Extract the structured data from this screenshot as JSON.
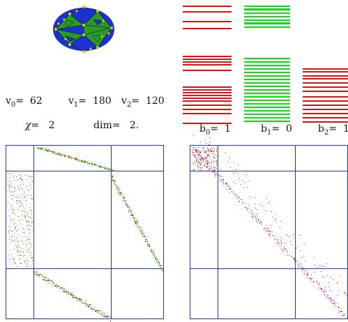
{
  "stats": {
    "v0_label": "v",
    "v0_sub": "0",
    "v0_eq": "=",
    "v0_value": "62",
    "v1_label": "v",
    "v1_sub": "1",
    "v1_eq": "=",
    "v1_value": "180",
    "v2_label": "v",
    "v2_sub": "2",
    "v2_eq": "=",
    "v2_value": "120",
    "chi_label": "χ=",
    "chi_value": "2",
    "dim_label": "dim=",
    "dim_value": "2."
  },
  "betti": {
    "b0_label": "b",
    "b0_sub": "0",
    "b0_eq": "=",
    "b0_value": "1",
    "b1_label": "b",
    "b1_sub": "1",
    "b1_eq": "=",
    "b1_value": "0",
    "b2_label": "b",
    "b2_sub": "2",
    "b2_eq": "=",
    "b2_value": "1"
  },
  "colors": {
    "red": "#e01010",
    "green": "#10dd10",
    "blue": "#2233cc",
    "magenta": "#dd22dd",
    "poly_blue": "#1a33cc",
    "poly_green": "#2a9a2a",
    "poly_yellow": "#d8c820"
  }
}
